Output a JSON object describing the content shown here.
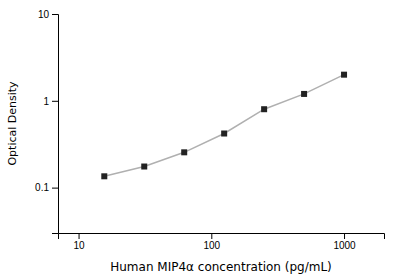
{
  "chart_data": {
    "type": "line",
    "xlabel": "Human MIP4α concentration (pg/mL)",
    "ylabel": "Optical Density",
    "x": [
      15.625,
      31.25,
      62.5,
      125,
      250,
      500,
      1000
    ],
    "values": [
      0.135,
      0.175,
      0.255,
      0.42,
      0.8,
      1.2,
      2.0
    ],
    "color": "#b0b0b0",
    "colors": [
      "#222222",
      "#222222",
      "#222222",
      "#222222",
      "#222222",
      "#222222",
      "#222222"
    ],
    "marker": "square",
    "log": true,
    "grid": false,
    "xlim": [
      7,
      2000
    ],
    "ylim": [
      0.03,
      10
    ],
    "xticks": [
      10,
      100,
      1000
    ],
    "yticks": [
      0.1,
      1,
      10
    ]
  }
}
